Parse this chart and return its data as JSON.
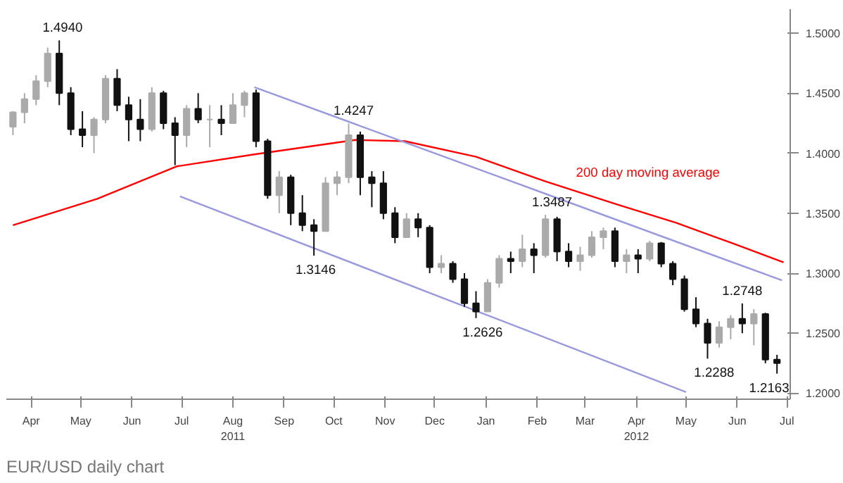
{
  "chart_data": {
    "type": "candlestick",
    "x": [
      "2011-04-04",
      "2011-04-11",
      "2011-04-18",
      "2011-04-25",
      "2011-05-02",
      "2011-05-09",
      "2011-05-16",
      "2011-05-23",
      "2011-05-30",
      "2011-06-06",
      "2011-06-13",
      "2011-06-20",
      "2011-06-27",
      "2011-07-04",
      "2011-07-11",
      "2011-07-18",
      "2011-07-25",
      "2011-08-01",
      "2011-08-08",
      "2011-08-15",
      "2011-08-22",
      "2011-08-29",
      "2011-09-05",
      "2011-09-12",
      "2011-09-19",
      "2011-09-26",
      "2011-10-03",
      "2011-10-10",
      "2011-10-17",
      "2011-10-24",
      "2011-10-31",
      "2011-11-07",
      "2011-11-14",
      "2011-11-21",
      "2011-11-28",
      "2011-12-05",
      "2011-12-12",
      "2011-12-19",
      "2011-12-26",
      "2012-01-02",
      "2012-01-09",
      "2012-01-16",
      "2012-01-23",
      "2012-01-30",
      "2012-02-06",
      "2012-02-13",
      "2012-02-20",
      "2012-02-27",
      "2012-03-05",
      "2012-03-12",
      "2012-03-19",
      "2012-03-26",
      "2012-04-02",
      "2012-04-09",
      "2012-04-16",
      "2012-04-23",
      "2012-04-30",
      "2012-05-07",
      "2012-05-14",
      "2012-05-21",
      "2012-05-28",
      "2012-06-04",
      "2012-06-11",
      "2012-06-18",
      "2012-06-25",
      "2012-07-02",
      "2012-07-09"
    ],
    "ohlc": [
      [
        1.422,
        1.435,
        1.415,
        1.434
      ],
      [
        1.434,
        1.45,
        1.425,
        1.445
      ],
      [
        1.445,
        1.465,
        1.44,
        1.46
      ],
      [
        1.46,
        1.488,
        1.455,
        1.483
      ],
      [
        1.483,
        1.494,
        1.44,
        1.45
      ],
      [
        1.45,
        1.455,
        1.415,
        1.42
      ],
      [
        1.42,
        1.435,
        1.405,
        1.415
      ],
      [
        1.415,
        1.43,
        1.4,
        1.428
      ],
      [
        1.428,
        1.465,
        1.425,
        1.462
      ],
      [
        1.462,
        1.47,
        1.435,
        1.44
      ],
      [
        1.44,
        1.447,
        1.41,
        1.428
      ],
      [
        1.428,
        1.445,
        1.41,
        1.42
      ],
      [
        1.42,
        1.455,
        1.418,
        1.45
      ],
      [
        1.45,
        1.452,
        1.42,
        1.425
      ],
      [
        1.425,
        1.43,
        1.39,
        1.415
      ],
      [
        1.415,
        1.44,
        1.405,
        1.437
      ],
      [
        1.437,
        1.45,
        1.425,
        1.428
      ],
      [
        1.428,
        1.44,
        1.405,
        1.428
      ],
      [
        1.428,
        1.44,
        1.415,
        1.425
      ],
      [
        1.425,
        1.45,
        1.425,
        1.44
      ],
      [
        1.44,
        1.452,
        1.43,
        1.45
      ],
      [
        1.45,
        1.453,
        1.405,
        1.41
      ],
      [
        1.41,
        1.412,
        1.362,
        1.365
      ],
      [
        1.365,
        1.385,
        1.35,
        1.38
      ],
      [
        1.38,
        1.382,
        1.34,
        1.35
      ],
      [
        1.35,
        1.365,
        1.335,
        1.34
      ],
      [
        1.34,
        1.345,
        1.3146,
        1.335
      ],
      [
        1.335,
        1.38,
        1.335,
        1.375
      ],
      [
        1.375,
        1.385,
        1.365,
        1.38
      ],
      [
        1.38,
        1.4247,
        1.375,
        1.415
      ],
      [
        1.415,
        1.418,
        1.365,
        1.38
      ],
      [
        1.38,
        1.385,
        1.355,
        1.375
      ],
      [
        1.375,
        1.385,
        1.345,
        1.35
      ],
      [
        1.35,
        1.355,
        1.325,
        1.33
      ],
      [
        1.33,
        1.35,
        1.33,
        1.345
      ],
      [
        1.345,
        1.35,
        1.33,
        1.338
      ],
      [
        1.338,
        1.34,
        1.3,
        1.305
      ],
      [
        1.305,
        1.315,
        1.3,
        1.308
      ],
      [
        1.308,
        1.31,
        1.292,
        1.295
      ],
      [
        1.295,
        1.3,
        1.272,
        1.275
      ],
      [
        1.275,
        1.285,
        1.2626,
        1.268
      ],
      [
        1.268,
        1.295,
        1.268,
        1.292
      ],
      [
        1.292,
        1.315,
        1.288,
        1.312
      ],
      [
        1.312,
        1.318,
        1.3,
        1.31
      ],
      [
        1.31,
        1.332,
        1.305,
        1.32
      ],
      [
        1.32,
        1.325,
        1.3,
        1.315
      ],
      [
        1.315,
        1.3487,
        1.313,
        1.345
      ],
      [
        1.345,
        1.347,
        1.31,
        1.318
      ],
      [
        1.318,
        1.325,
        1.305,
        1.31
      ],
      [
        1.31,
        1.322,
        1.302,
        1.315
      ],
      [
        1.315,
        1.335,
        1.313,
        1.33
      ],
      [
        1.33,
        1.338,
        1.32,
        1.335
      ],
      [
        1.335,
        1.338,
        1.305,
        1.31
      ],
      [
        1.31,
        1.32,
        1.3,
        1.315
      ],
      [
        1.315,
        1.32,
        1.3,
        1.312
      ],
      [
        1.312,
        1.327,
        1.31,
        1.325
      ],
      [
        1.325,
        1.326,
        1.305,
        1.308
      ],
      [
        1.308,
        1.31,
        1.29,
        1.295
      ],
      [
        1.295,
        1.298,
        1.268,
        1.27
      ],
      [
        1.27,
        1.28,
        1.255,
        1.258
      ],
      [
        1.258,
        1.262,
        1.2288,
        1.242
      ],
      [
        1.242,
        1.26,
        1.238,
        1.255
      ],
      [
        1.255,
        1.265,
        1.245,
        1.262
      ],
      [
        1.262,
        1.2748,
        1.25,
        1.258
      ],
      [
        1.258,
        1.27,
        1.24,
        1.266
      ],
      [
        1.266,
        1.267,
        1.225,
        1.228
      ],
      [
        1.228,
        1.232,
        1.2163,
        1.225
      ]
    ],
    "series": [
      {
        "type": "line",
        "name": "200 day moving average",
        "color": "#ff0000",
        "x": [
          "2011-04-04",
          "2011-05-25",
          "2011-07-12",
          "2011-08-28",
          "2011-10-28",
          "2011-11-27",
          "2012-01-09",
          "2012-02-21",
          "2012-04-04",
          "2012-05-09",
          "2012-06-12",
          "2012-07-13"
        ],
        "values": [
          1.34,
          1.362,
          1.389,
          1.399,
          1.411,
          1.41,
          1.397,
          1.376,
          1.357,
          1.342,
          1.325,
          1.309
        ]
      },
      {
        "type": "line",
        "color": "#9999dd",
        "x": [
          "2011-08-28",
          "2012-07-12"
        ],
        "values": [
          1.455,
          1.294
        ]
      },
      {
        "type": "line",
        "color": "#9999dd",
        "x": [
          "2011-07-14",
          "2012-05-15"
        ],
        "values": [
          1.364,
          1.201
        ]
      }
    ],
    "annotations": [
      {
        "text": "1.4940",
        "x": "2011-05-04",
        "y": 1.494
      },
      {
        "text": "1.4247",
        "x": "2011-10-27",
        "y": 1.4247
      },
      {
        "text": "1.3146",
        "x": "2011-10-04",
        "y": 1.3146
      },
      {
        "text": "1.2626",
        "x": "2012-01-13",
        "y": 1.2626
      },
      {
        "text": "1.3487",
        "x": "2012-02-24",
        "y": 1.3487
      },
      {
        "text": "1.2288",
        "x": "2012-06-01",
        "y": 1.2288
      },
      {
        "text": "1.2748",
        "x": "2012-06-18",
        "y": 1.2748
      },
      {
        "text": "1.2163",
        "x": "2012-07-13",
        "y": 1.2163
      },
      "EUR/USD daily chart"
    ],
    "xlim": [
      "2011-03-31",
      "2012-07-17"
    ],
    "xticks": [
      {
        "value": "2011-04-15",
        "label": "Apr"
      },
      {
        "value": "2011-05-15",
        "label": "May"
      },
      {
        "value": "2011-06-15",
        "label": "Jun"
      },
      {
        "value": "2011-07-15",
        "label": "Jul"
      },
      {
        "value": "2011-08-15",
        "label": "Aug\n2011"
      },
      {
        "value": "2011-09-15",
        "label": "Sep"
      },
      {
        "value": "2011-10-15",
        "label": "Oct"
      },
      {
        "value": "2011-11-15",
        "label": "Nov"
      },
      {
        "value": "2011-12-15",
        "label": "Dec"
      },
      {
        "value": "2012-01-15",
        "label": "Jan"
      },
      {
        "value": "2012-02-15",
        "label": "Feb"
      },
      {
        "value": "2012-03-15",
        "label": "Mar"
      },
      {
        "value": "2012-04-15",
        "label": "Apr\n2012"
      },
      {
        "value": "2012-05-15",
        "label": "May"
      },
      {
        "value": "2012-06-15",
        "label": "Jun"
      },
      {
        "value": "2012-07-15",
        "label": "Jul"
      }
    ],
    "ylim": [
      1.195,
      1.52
    ],
    "yticks": [
      {
        "value": 1.2,
        "label": "1.2000"
      },
      {
        "value": 1.25,
        "label": "1.2500"
      },
      {
        "value": 1.3,
        "label": "1.3000"
      },
      {
        "value": 1.35,
        "label": "1.3500"
      },
      {
        "value": 1.4,
        "label": "1.4000"
      },
      {
        "value": 1.45,
        "label": "1.4500"
      },
      {
        "value": 1.5,
        "label": "1.5000"
      }
    ],
    "grid": false
  }
}
